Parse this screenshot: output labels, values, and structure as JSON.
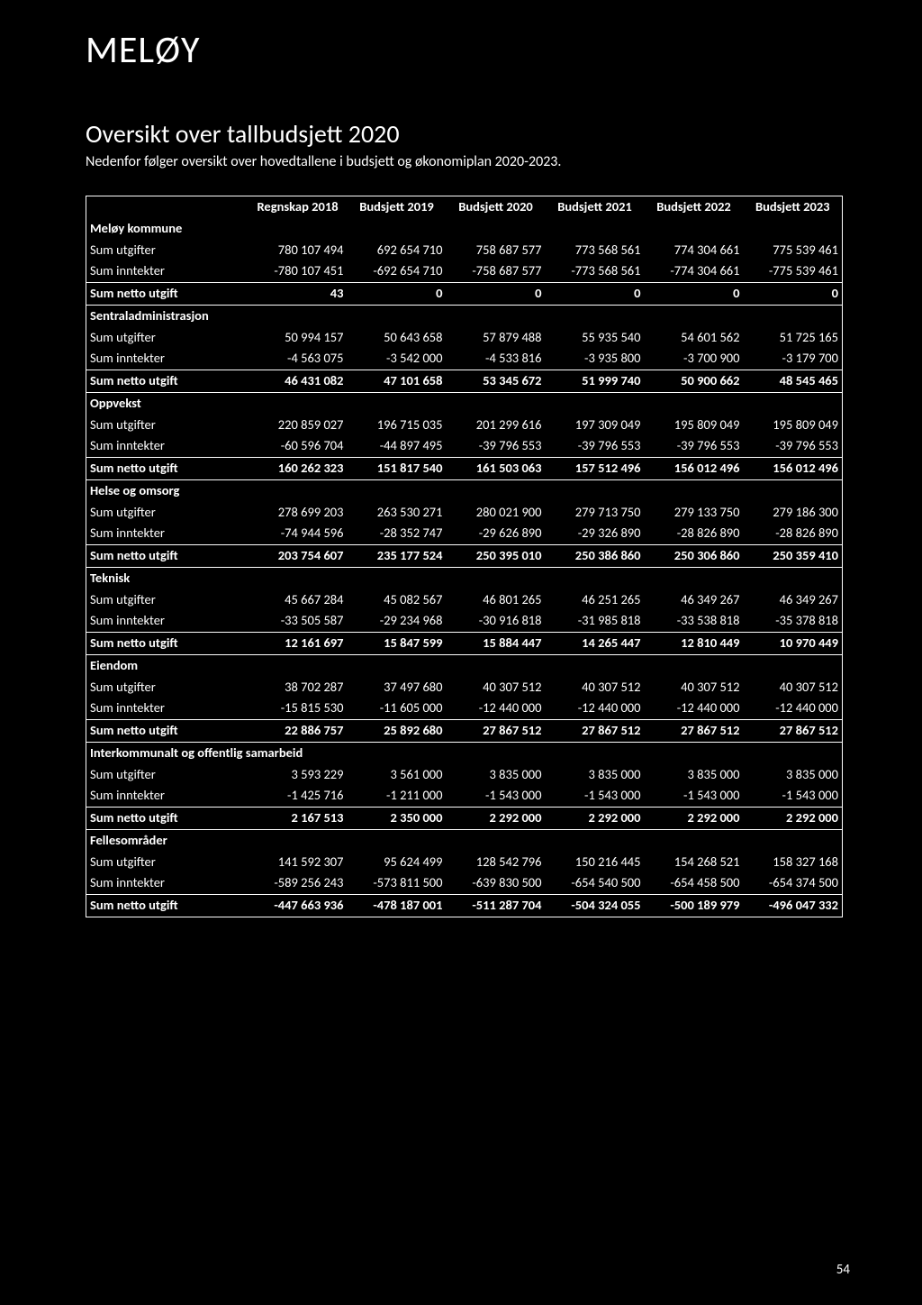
{
  "brand": "MELØY",
  "title": "Oversikt over tallbudsjett 2020",
  "subtitle": "Nedenfor følger oversikt over hovedtallene i budsjett og økonomiplan 2020-2023.",
  "page_number": "54",
  "columns": [
    "",
    "Regnskap 2018",
    "Budsjett 2019",
    "Budsjett 2020",
    "Budsjett 2021",
    "Budsjett 2022",
    "Budsjett 2023"
  ],
  "sections": [
    {
      "name": "Meløy kommune",
      "rows": [
        {
          "label": "Sum utgifter",
          "v": [
            "780 107 494",
            "692 654 710",
            "758 687 577",
            "773 568 561",
            "774 304 661",
            "775 539 461"
          ]
        },
        {
          "label": "Sum inntekter",
          "v": [
            "-780 107 451",
            "-692 654 710",
            "-758 687 577",
            "-773 568 561",
            "-774 304 661",
            "-775 539 461"
          ]
        }
      ],
      "netto": {
        "label": "Sum netto utgift",
        "v": [
          "43",
          "0",
          "0",
          "0",
          "0",
          "0"
        ]
      }
    },
    {
      "name": "Sentraladministrasjon",
      "rows": [
        {
          "label": "Sum utgifter",
          "v": [
            "50 994 157",
            "50 643 658",
            "57 879 488",
            "55 935 540",
            "54 601 562",
            "51 725 165"
          ]
        },
        {
          "label": "Sum inntekter",
          "v": [
            "-4 563 075",
            "-3 542 000",
            "-4 533 816",
            "-3 935 800",
            "-3 700 900",
            "-3 179 700"
          ]
        }
      ],
      "netto": {
        "label": "Sum netto utgift",
        "v": [
          "46 431 082",
          "47 101 658",
          "53 345 672",
          "51 999 740",
          "50 900 662",
          "48 545 465"
        ]
      }
    },
    {
      "name": "Oppvekst",
      "rows": [
        {
          "label": "Sum utgifter",
          "v": [
            "220 859 027",
            "196 715 035",
            "201 299 616",
            "197 309 049",
            "195 809 049",
            "195 809 049"
          ]
        },
        {
          "label": "Sum inntekter",
          "v": [
            "-60 596 704",
            "-44 897 495",
            "-39 796 553",
            "-39 796 553",
            "-39 796 553",
            "-39 796 553"
          ]
        }
      ],
      "netto": {
        "label": "Sum netto utgift",
        "v": [
          "160 262 323",
          "151 817 540",
          "161 503 063",
          "157 512 496",
          "156 012 496",
          "156 012 496"
        ]
      }
    },
    {
      "name": "Helse og omsorg",
      "rows": [
        {
          "label": "Sum utgifter",
          "v": [
            "278 699 203",
            "263 530 271",
            "280 021 900",
            "279 713 750",
            "279 133 750",
            "279 186 300"
          ]
        },
        {
          "label": "Sum inntekter",
          "v": [
            "-74 944 596",
            "-28 352 747",
            "-29 626 890",
            "-29 326 890",
            "-28 826 890",
            "-28 826 890"
          ]
        }
      ],
      "netto": {
        "label": "Sum netto utgift",
        "v": [
          "203 754 607",
          "235 177 524",
          "250 395 010",
          "250 386 860",
          "250 306 860",
          "250 359 410"
        ]
      }
    },
    {
      "name": "Teknisk",
      "rows": [
        {
          "label": "Sum utgifter",
          "v": [
            "45 667 284",
            "45 082 567",
            "46 801 265",
            "46 251 265",
            "46 349 267",
            "46 349 267"
          ]
        },
        {
          "label": "Sum inntekter",
          "v": [
            "-33 505 587",
            "-29 234 968",
            "-30 916 818",
            "-31 985 818",
            "-33 538 818",
            "-35 378 818"
          ]
        }
      ],
      "netto": {
        "label": "Sum netto utgift",
        "v": [
          "12 161 697",
          "15 847 599",
          "15 884 447",
          "14 265 447",
          "12 810 449",
          "10 970 449"
        ]
      }
    },
    {
      "name": "Eiendom",
      "rows": [
        {
          "label": "Sum utgifter",
          "v": [
            "38 702 287",
            "37 497 680",
            "40 307 512",
            "40 307 512",
            "40 307 512",
            "40 307 512"
          ]
        },
        {
          "label": "Sum inntekter",
          "v": [
            "-15 815 530",
            "-11 605 000",
            "-12 440 000",
            "-12 440 000",
            "-12 440 000",
            "-12 440 000"
          ]
        }
      ],
      "netto": {
        "label": "Sum netto utgift",
        "v": [
          "22 886 757",
          "25 892 680",
          "27 867 512",
          "27 867 512",
          "27 867 512",
          "27 867 512"
        ]
      }
    },
    {
      "name": "Interkommunalt og offentlig samarbeid",
      "rows": [
        {
          "label": "Sum utgifter",
          "v": [
            "3 593 229",
            "3 561 000",
            "3 835 000",
            "3 835 000",
            "3 835 000",
            "3 835 000"
          ]
        },
        {
          "label": "Sum inntekter",
          "v": [
            "-1 425 716",
            "-1 211 000",
            "-1 543 000",
            "-1 543 000",
            "-1 543 000",
            "-1 543 000"
          ]
        }
      ],
      "netto": {
        "label": "Sum netto utgift",
        "v": [
          "2 167 513",
          "2 350 000",
          "2 292 000",
          "2 292 000",
          "2 292 000",
          "2 292 000"
        ]
      }
    },
    {
      "name": "Fellesområder",
      "rows": [
        {
          "label": "Sum utgifter",
          "v": [
            "141 592 307",
            "95 624 499",
            "128 542 796",
            "150 216 445",
            "154 268 521",
            "158 327 168"
          ]
        },
        {
          "label": "Sum inntekter",
          "v": [
            "-589 256 243",
            "-573 811 500",
            "-639 830 500",
            "-654 540 500",
            "-654 458 500",
            "-654 374 500"
          ]
        }
      ],
      "netto": {
        "label": "Sum netto utgift",
        "v": [
          "-447 663 936",
          "-478 187 001",
          "-511 287 704",
          "-504 324 055",
          "-500 189 979",
          "-496 047 332"
        ]
      }
    }
  ]
}
